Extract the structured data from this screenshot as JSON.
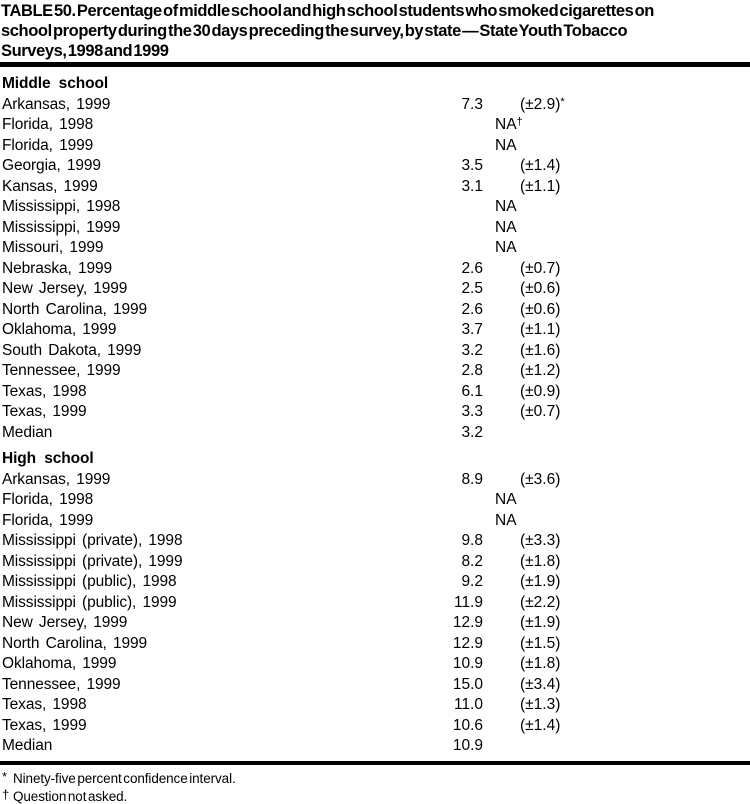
{
  "title_lines": [
    "TABLE 50. Percentage of middle school and high school students who smoked cigarettes on",
    "school property during the 30 days preceding the survey, by state — State Youth Tobacco",
    "Surveys, 1998 and 1999"
  ],
  "sections": [
    {
      "header": "Middle school",
      "rows": [
        {
          "label": "Arkansas, 1999",
          "value": "7.3",
          "ci": "(±2.9)",
          "sup": "*"
        },
        {
          "label": "Florida, 1998",
          "value": "NA",
          "ci": "",
          "sup": "†"
        },
        {
          "label": "Florida, 1999",
          "value": "NA",
          "ci": "",
          "sup": ""
        },
        {
          "label": "Georgia, 1999",
          "value": "3.5",
          "ci": "(±1.4)",
          "sup": ""
        },
        {
          "label": "Kansas, 1999",
          "value": "3.1",
          "ci": "(±1.1)",
          "sup": ""
        },
        {
          "label": "Mississippi, 1998",
          "value": "NA",
          "ci": "",
          "sup": ""
        },
        {
          "label": "Mississippi, 1999",
          "value": "NA",
          "ci": "",
          "sup": ""
        },
        {
          "label": "Missouri, 1999",
          "value": "NA",
          "ci": "",
          "sup": ""
        },
        {
          "label": "Nebraska, 1999",
          "value": "2.6",
          "ci": "(±0.7)",
          "sup": ""
        },
        {
          "label": "New Jersey, 1999",
          "value": "2.5",
          "ci": "(±0.6)",
          "sup": ""
        },
        {
          "label": "North Carolina, 1999",
          "value": "2.6",
          "ci": "(±0.6)",
          "sup": ""
        },
        {
          "label": "Oklahoma, 1999",
          "value": "3.7",
          "ci": "(±1.1)",
          "sup": ""
        },
        {
          "label": "South Dakota, 1999",
          "value": "3.2",
          "ci": "(±1.6)",
          "sup": ""
        },
        {
          "label": "Tennessee, 1999",
          "value": "2.8",
          "ci": "(±1.2)",
          "sup": ""
        },
        {
          "label": "Texas, 1998",
          "value": "6.1",
          "ci": "(±0.9)",
          "sup": ""
        },
        {
          "label": "Texas, 1999",
          "value": "3.3",
          "ci": "(±0.7)",
          "sup": ""
        },
        {
          "label": "Median",
          "value": "3.2",
          "ci": "",
          "sup": ""
        }
      ]
    },
    {
      "header": "High school",
      "rows": [
        {
          "label": "Arkansas, 1999",
          "value": "8.9",
          "ci": "(±3.6)",
          "sup": ""
        },
        {
          "label": "Florida, 1998",
          "value": "NA",
          "ci": "",
          "sup": ""
        },
        {
          "label": "Florida, 1999",
          "value": "NA",
          "ci": "",
          "sup": ""
        },
        {
          "label": "Mississippi (private), 1998",
          "value": "9.8",
          "ci": "(±3.3)",
          "sup": ""
        },
        {
          "label": "Mississippi (private), 1999",
          "value": "8.2",
          "ci": "(±1.8)",
          "sup": ""
        },
        {
          "label": "Mississippi (public), 1998",
          "value": "9.2",
          "ci": "(±1.9)",
          "sup": ""
        },
        {
          "label": "Mississippi (public), 1999",
          "value": "11.9",
          "ci": "(±2.2)",
          "sup": ""
        },
        {
          "label": "New Jersey, 1999",
          "value": "12.9",
          "ci": "(±1.9)",
          "sup": ""
        },
        {
          "label": "North Carolina, 1999",
          "value": "12.9",
          "ci": "(±1.5)",
          "sup": ""
        },
        {
          "label": "Oklahoma, 1999",
          "value": "10.9",
          "ci": "(±1.8)",
          "sup": ""
        },
        {
          "label": "Tennessee, 1999",
          "value": "15.0",
          "ci": "(±3.4)",
          "sup": ""
        },
        {
          "label": "Texas, 1998",
          "value": "11.0",
          "ci": "(±1.3)",
          "sup": ""
        },
        {
          "label": "Texas, 1999",
          "value": "10.6",
          "ci": "(±1.4)",
          "sup": ""
        },
        {
          "label": "Median",
          "value": "10.9",
          "ci": "",
          "sup": ""
        }
      ]
    }
  ],
  "footnotes": [
    {
      "marker": "*",
      "text": "Ninety-five percent confidence interval."
    },
    {
      "marker": "†",
      "text": "Question not asked."
    }
  ]
}
